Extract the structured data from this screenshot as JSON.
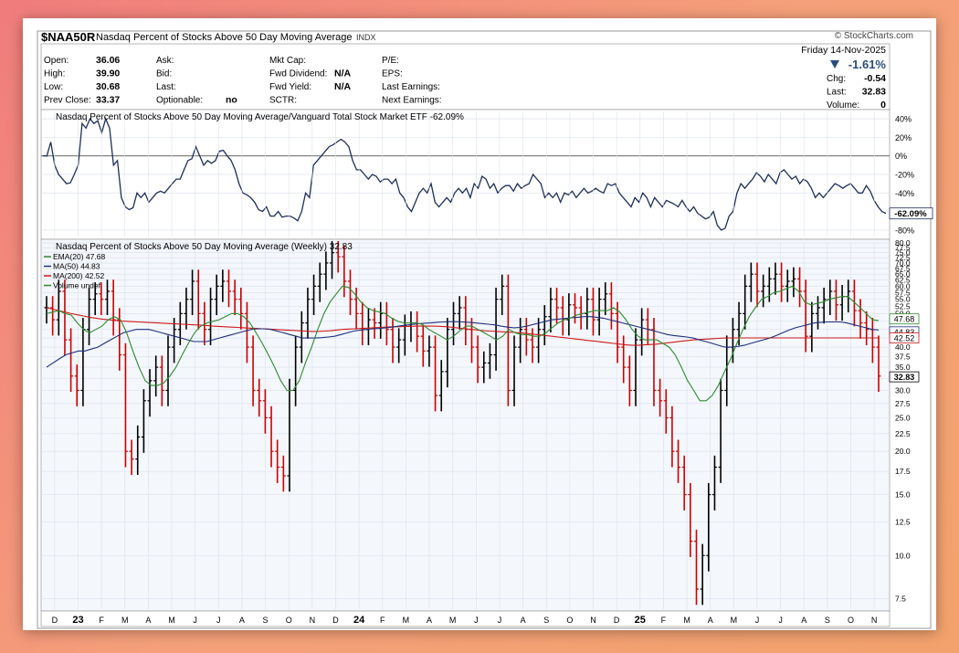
{
  "header": {
    "symbol": "$NAA50R",
    "name": "Nasdaq Percent of Stocks Above 50 Day Moving Average",
    "exchange": "INDX",
    "brand": "© StockCharts.com",
    "date": "Friday  14-Nov-2025",
    "pct_change": "-1.61%",
    "stats_left": [
      {
        "label": "Open:",
        "value": "36.06"
      },
      {
        "label": "High:",
        "value": "39.90"
      },
      {
        "label": "Low:",
        "value": "30.68"
      },
      {
        "label": "Prev Close:",
        "value": "33.37"
      }
    ],
    "stats_mid": [
      {
        "label": "Ask:",
        "value": ""
      },
      {
        "label": "Bid:",
        "value": ""
      },
      {
        "label": "Last:",
        "value": ""
      },
      {
        "label": "Optionable:",
        "value": "no"
      }
    ],
    "stats_mid2": [
      {
        "label": "Mkt Cap:",
        "value": ""
      },
      {
        "label": "Fwd Dividend:",
        "value": "N/A"
      },
      {
        "label": "Fwd Yield:",
        "value": "N/A"
      },
      {
        "label": "SCTR:",
        "value": ""
      }
    ],
    "stats_mid3": [
      {
        "label": "P/E:",
        "value": ""
      },
      {
        "label": "EPS:",
        "value": ""
      },
      {
        "label": "Last Earnings:",
        "value": ""
      },
      {
        "label": "Next Earnings:",
        "value": ""
      }
    ],
    "stats_right": [
      {
        "label": "Chg:",
        "value": "-0.54"
      },
      {
        "label": "Last:",
        "value": "32.83"
      },
      {
        "label": "Volume:",
        "value": "0"
      }
    ]
  },
  "colors": {
    "up": "#000000",
    "down": "#cc0000",
    "ema20": "#2e8b2e",
    "ma50": "#1f2f7a",
    "ma200": "#cc1a1a",
    "ratio_line": "#1f2f5a",
    "grid": "#dde3ee",
    "zero_line": "#333333"
  },
  "chart_data": [
    {
      "type": "line",
      "title": "Nasdaq Percent of Stocks Above 50 Day Moving Average/Vanguard Total Stock Market ETF -62.09%",
      "ylim": [
        -90,
        50
      ],
      "y_ticks": [
        "40%",
        "20%",
        "0%",
        "-20%",
        "-40%",
        "-80%"
      ],
      "y_tick_values": [
        40,
        20,
        0,
        -20,
        -40,
        -80
      ],
      "last_label": "-62.09%",
      "last_value": -62.09,
      "series": [
        {
          "values": [
            0,
            0,
            15,
            -10,
            -20,
            -25,
            -30,
            -29,
            -20,
            -10,
            35,
            30,
            40,
            35,
            38,
            25,
            40,
            30,
            -10,
            -5,
            -45,
            -55,
            -58,
            -56,
            -40,
            -45,
            -40,
            -50,
            -45,
            -40,
            -38,
            -40,
            -35,
            -30,
            -25,
            -25,
            -15,
            -5,
            -3,
            10,
            0,
            -10,
            -5,
            -8,
            -5,
            5,
            6,
            0,
            -5,
            -15,
            -30,
            -40,
            -42,
            -45,
            -50,
            -58,
            -60,
            -55,
            -65,
            -65,
            -60,
            -66,
            -65,
            -65,
            -67,
            -70,
            -60,
            -40,
            -45,
            -10,
            -5,
            0,
            5,
            10,
            12,
            15,
            18,
            15,
            10,
            -5,
            -15,
            -15,
            -20,
            -25,
            -20,
            -22,
            -28,
            -25,
            -25,
            -30,
            -25,
            -40,
            -45,
            -55,
            -60,
            -50,
            -40,
            -35,
            -40,
            -30,
            -50,
            -55,
            -50,
            -45,
            -50,
            -40,
            -35,
            -40,
            -35,
            -45,
            -30,
            -35,
            -22,
            -25,
            -35,
            -30,
            -40,
            -35,
            -32,
            -32,
            -38,
            -30,
            -35,
            -32,
            -30,
            -20,
            -25,
            -30,
            -45,
            -40,
            -45,
            -40,
            -50,
            -40,
            -42,
            -38,
            -45,
            -40,
            -35,
            -40,
            -38,
            -35,
            -38,
            -40,
            -30,
            -32,
            -30,
            -40,
            -45,
            -50,
            -55,
            -45,
            -50,
            -40,
            -45,
            -55,
            -45,
            -50,
            -55,
            -48,
            -50,
            -52,
            -55,
            -48,
            -55,
            -60,
            -55,
            -62,
            -65,
            -68,
            -66,
            -60,
            -75,
            -80,
            -78,
            -65,
            -60,
            -40,
            -30,
            -35,
            -30,
            -25,
            -18,
            -22,
            -28,
            -20,
            -25,
            -30,
            -18,
            -15,
            -20,
            -25,
            -22,
            -30,
            -25,
            -28,
            -35,
            -45,
            -40,
            -45,
            -40,
            -35,
            -30,
            -32,
            -35,
            -32,
            -30,
            -35,
            -40,
            -40,
            -32,
            -38,
            -48,
            -55,
            -60,
            -62
          ]
        }
      ]
    },
    {
      "type": "bar",
      "title": "Nasdaq Percent of Stocks Above 50 Day Moving Average (Weekly) 32.83",
      "y_scale": "log",
      "ylim": [
        7.0,
        80
      ],
      "y_ticks": [
        "80.0",
        "77.5",
        "75.0",
        "72.5",
        "70.0",
        "67.5",
        "65.0",
        "62.5",
        "60.0",
        "57.5",
        "55.0",
        "52.5",
        "50.0",
        "47.5",
        "45.0",
        "42.5",
        "40.0",
        "37.5",
        "35.0",
        "32.5",
        "30.0",
        "27.5",
        "25.0",
        "22.5",
        "20.0",
        "17.5",
        "15.0",
        "12.5",
        "10.0",
        "7.5"
      ],
      "y_tick_values": [
        80,
        77.5,
        75,
        72.5,
        70,
        67.5,
        65,
        62.5,
        60,
        57.5,
        55,
        52.5,
        50,
        47.5,
        45,
        42.5,
        40,
        37.5,
        35,
        32.5,
        30,
        27.5,
        25,
        22.5,
        20,
        17.5,
        15,
        12.5,
        10,
        7.5
      ],
      "x_ticks": [
        "D",
        "23",
        "F",
        "M",
        "A",
        "M",
        "J",
        "J",
        "A",
        "S",
        "O",
        "N",
        "D",
        "24",
        "F",
        "M",
        "A",
        "M",
        "J",
        "J",
        "A",
        "S",
        "O",
        "N",
        "D",
        "25",
        "F",
        "M",
        "A",
        "M",
        "J",
        "J",
        "A",
        "S",
        "O",
        "N"
      ],
      "legend": [
        {
          "name": "EMA(20)",
          "value": "47.68"
        },
        {
          "name": "MA(50)",
          "value": "44.83"
        },
        {
          "name": "MA(200)",
          "value": "42.52"
        },
        {
          "name": "Volume undef",
          "value": ""
        }
      ],
      "price_labels": [
        {
          "text": "47.68",
          "value": 47.68
        },
        {
          "text": "44.83",
          "value": 44.83
        },
        {
          "text": "42.52",
          "value": 42.52
        },
        {
          "text": "32.83",
          "value": 32.83
        }
      ],
      "closes": [
        52,
        48,
        58,
        42,
        33,
        30,
        45,
        55,
        57,
        55,
        58,
        48,
        38,
        20,
        19,
        22,
        28,
        32,
        35,
        30,
        40,
        45,
        50,
        55,
        62,
        50,
        45,
        55,
        60,
        62,
        58,
        55,
        50,
        40,
        30,
        28,
        25,
        20,
        18,
        17,
        30,
        40,
        47,
        55,
        60,
        65,
        70,
        75,
        73,
        62,
        55,
        50,
        45,
        48,
        47,
        50,
        45,
        40,
        42,
        46,
        47,
        43,
        39,
        40,
        29,
        34,
        45,
        50,
        52,
        45,
        40,
        35,
        36,
        38,
        55,
        60,
        30,
        40,
        45,
        42,
        40,
        45,
        49,
        55,
        52,
        48,
        53,
        52,
        50,
        55,
        48,
        55,
        57,
        50,
        40,
        35,
        30,
        42,
        48,
        45,
        30,
        28,
        25,
        20,
        18,
        15,
        11,
        8,
        10,
        15,
        18,
        30,
        40,
        45,
        50,
        60,
        65,
        58,
        60,
        63,
        65,
        60,
        62,
        63,
        58,
        43,
        50,
        52,
        55,
        58,
        53,
        56,
        58,
        51,
        47,
        45,
        40,
        33
      ],
      "ema20": [
        50,
        50.5,
        51,
        50,
        49.5,
        47,
        45,
        44,
        45,
        46,
        48,
        49,
        48,
        44,
        39,
        35,
        32,
        31,
        31,
        31.5,
        33,
        35,
        38,
        41,
        44,
        46,
        47,
        47.5,
        48,
        49,
        50,
        50,
        49,
        47,
        44,
        41,
        38,
        35,
        32,
        30,
        30,
        32,
        36,
        40,
        45,
        50,
        54,
        57,
        60,
        59.5,
        57,
        54,
        52,
        51,
        50.5,
        50,
        48.5,
        47.5,
        47,
        47,
        47,
        46.5,
        45,
        44,
        43,
        42,
        43,
        44.5,
        46,
        46,
        45,
        44,
        43,
        42,
        43,
        45,
        44,
        43.5,
        43.5,
        43,
        43,
        44,
        45.5,
        47,
        48,
        48.5,
        49.5,
        50,
        50.5,
        51,
        51,
        51,
        52,
        50.5,
        48,
        45,
        43,
        42,
        42,
        42,
        41,
        40,
        38,
        35,
        32,
        30,
        28,
        28,
        29,
        31,
        34,
        37,
        41,
        45,
        49,
        52,
        55,
        56,
        57.5,
        58,
        59,
        60,
        58,
        54,
        53,
        53.5,
        54,
        55,
        55.5,
        56,
        56,
        54,
        52,
        50,
        48,
        47.7
      ],
      "ma50": [
        35,
        36,
        37,
        38,
        38.5,
        39,
        39,
        39.5,
        40,
        41,
        42,
        43,
        44,
        44.5,
        45,
        45,
        45,
        44.5,
        44,
        43.5,
        43,
        42.5,
        42,
        41.5,
        41.5,
        41.5,
        42,
        42.5,
        43,
        43.5,
        44,
        44.5,
        45,
        45.2,
        45.2,
        45,
        44.5,
        44,
        43.5,
        43,
        42.5,
        42.5,
        42.5,
        42.6,
        42.8,
        43,
        43.5,
        44,
        44.5,
        44.8,
        45,
        45.2,
        45.3,
        45.5,
        45.7,
        46,
        46.3,
        46.5,
        46.7,
        46.9,
        47,
        47.2,
        47.3,
        47.4,
        47.4,
        47.3,
        47.2,
        47,
        46.8,
        46.6,
        46.4,
        46,
        45.7,
        45.5,
        45.6,
        46,
        46.5,
        47,
        47.5,
        48,
        48.2,
        48.4,
        48.6,
        48.8,
        49,
        49,
        48.8,
        48.5,
        48,
        47.5,
        47,
        46.5,
        46,
        45.5,
        45,
        44.5,
        44,
        43.5,
        43.2,
        43,
        42.8,
        42.5,
        42,
        41.5,
        41,
        40.5,
        40,
        40,
        40.2,
        40.5,
        41,
        41.5,
        42,
        42.5,
        43.2,
        44,
        44.8,
        45.5,
        46,
        46.5,
        47,
        47.2,
        47.3,
        47.3,
        47.3,
        47,
        46.5,
        46,
        45.5,
        45,
        44.83
      ],
      "ma200": [
        52,
        51.5,
        51,
        50.5,
        50,
        49.6,
        49.2,
        48.8,
        48.5,
        48.2,
        48,
        47.8,
        47.6,
        47.5,
        47.4,
        47.3,
        47.2,
        47.1,
        47,
        46.9,
        46.8,
        46.7,
        46.6,
        46.5,
        46.4,
        46.3,
        46.2,
        46,
        45.9,
        45.8,
        45.7,
        45.6,
        45.5,
        45.4,
        45.3,
        45.2,
        45.1,
        45,
        44.9,
        44.8,
        44.7,
        44.6,
        44.5,
        44.4,
        44.4,
        44.5,
        44.6,
        44.8,
        45,
        45.1,
        45.2,
        45.3,
        45.4,
        45.5,
        45.6,
        45.7,
        45.8,
        45.8,
        45.9,
        45.9,
        46,
        46,
        46,
        46,
        45.9,
        45.8,
        45.6,
        45.4,
        45.2,
        45,
        44.8,
        44.6,
        44.5,
        44.4,
        44.3,
        44.2,
        44.1,
        44,
        43.8,
        43.6,
        43.4,
        43.2,
        43,
        42.8,
        42.6,
        42.4,
        42.2,
        42,
        41.8,
        41.6,
        41.4,
        41.2,
        41,
        40.8,
        40.6,
        40.5,
        40.5,
        40.6,
        40.7,
        40.8,
        41,
        41.2,
        41.4,
        41.6,
        41.8,
        42,
        42.1,
        42.2,
        42.3,
        42.4,
        42.5,
        42.52,
        42.52,
        42.52,
        42.52,
        42.52,
        42.52,
        42.52,
        42.52,
        42.52,
        42.52,
        42.52,
        42.52,
        42.52,
        42.52,
        42.52,
        42.52,
        42.52,
        42.52,
        42.52,
        42.52,
        42.52,
        42.52,
        42.52,
        42.52,
        42.52
      ]
    }
  ]
}
